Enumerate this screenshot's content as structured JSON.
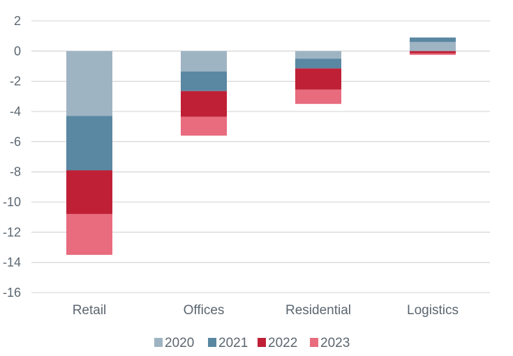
{
  "chart_data": {
    "type": "bar",
    "stacked": true,
    "categories": [
      "Retail",
      "Offices",
      "Residential",
      "Logistics"
    ],
    "series": [
      {
        "name": "2020",
        "color": "#9fb4c3",
        "values": [
          -4.3,
          -1.35,
          -0.5,
          0.6
        ]
      },
      {
        "name": "2021",
        "color": "#5a87a2",
        "values": [
          -3.6,
          -1.3,
          -0.65,
          0.3
        ]
      },
      {
        "name": "2022",
        "color": "#bf2036",
        "values": [
          -2.9,
          -1.7,
          -1.4,
          -0.15
        ]
      },
      {
        "name": "2023",
        "color": "#e86b7e",
        "values": [
          -2.7,
          -1.25,
          -0.95,
          -0.1
        ]
      }
    ],
    "yticks": [
      2,
      0,
      -2,
      -4,
      -6,
      -8,
      -10,
      -12,
      -14,
      -16
    ],
    "ylim": [
      -16,
      2
    ],
    "grid": true,
    "legend": "bottom-center",
    "title": "",
    "xlabel": "",
    "ylabel": ""
  }
}
